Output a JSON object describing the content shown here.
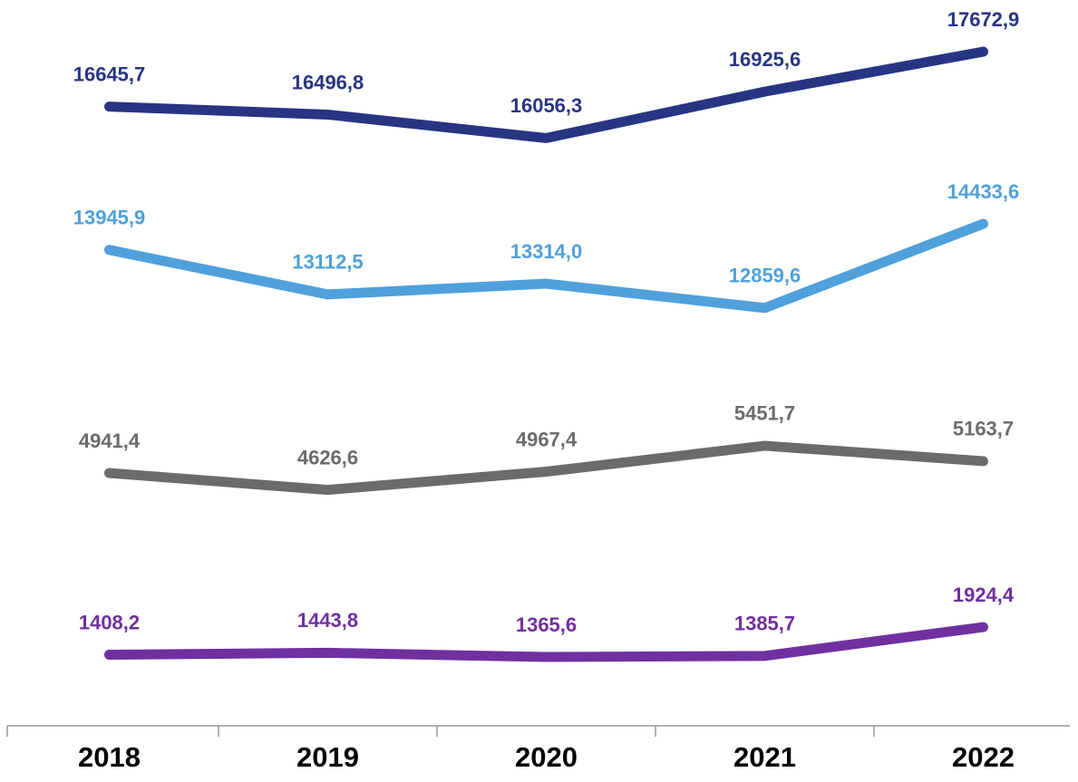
{
  "chart_data": {
    "type": "line",
    "categories": [
      "2018",
      "2019",
      "2020",
      "2021",
      "2022"
    ],
    "series": [
      {
        "color": "#283583",
        "ylim": [
          15250,
          18640
        ],
        "values": [
          16645.7,
          16496.8,
          16056.3,
          16925.6,
          17672.9
        ],
        "value_labels": [
          "16645,7",
          "16496,8",
          "16056,3",
          "16925,6",
          "17672,9"
        ]
      },
      {
        "color": "#4fa0db",
        "ylim": [
          11840,
          15230
        ],
        "values": [
          13945.9,
          13112.5,
          13314.0,
          12859.6,
          14433.6
        ],
        "value_labels": [
          "13945,9",
          "13112,5",
          "13314,0",
          "12859,6",
          "14433,6"
        ]
      },
      {
        "color": "#6b6b6b",
        "ylim": [
          3620,
          7010
        ],
        "values": [
          4941.4,
          4626.6,
          4967.4,
          5451.7,
          5163.7
        ],
        "value_labels": [
          "4941,4",
          "4626,6",
          "4967,4",
          "5451,7",
          "5163,7"
        ]
      },
      {
        "color": "#7030a0",
        "ylim": [
          95,
          3485
        ],
        "values": [
          1408.2,
          1443.8,
          1365.6,
          1385.7,
          1924.4
        ],
        "value_labels": [
          "1408,2",
          "1443,8",
          "1365,6",
          "1385,7",
          "1924,4"
        ]
      }
    ]
  }
}
